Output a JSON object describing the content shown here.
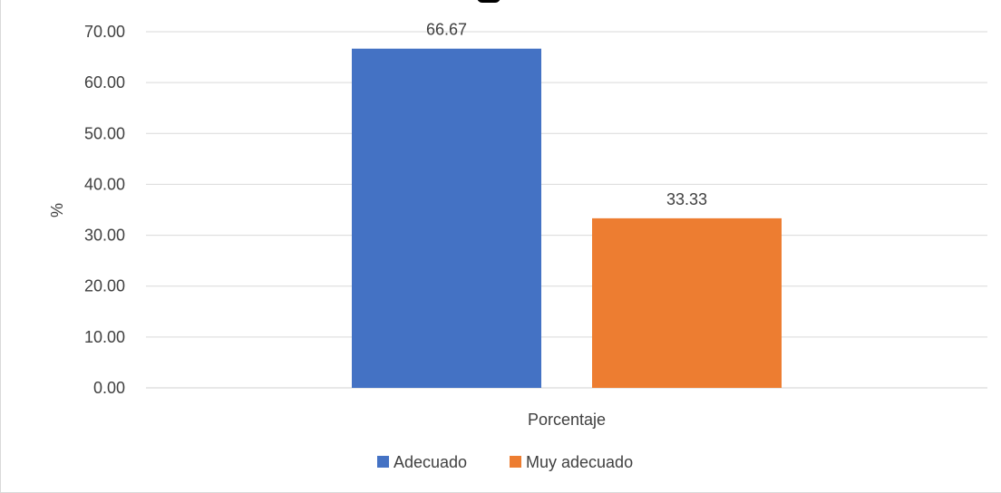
{
  "chart_data": {
    "type": "bar",
    "categories": [
      "Porcentaje"
    ],
    "series": [
      {
        "name": "Adecuado",
        "values": [
          66.67
        ],
        "color": "#4472C4"
      },
      {
        "name": "Muy adecuado",
        "values": [
          33.33
        ],
        "color": "#ED7D31"
      }
    ],
    "data_labels": [
      "66.67",
      "33.33"
    ],
    "xlabel": "",
    "ylabel": "%",
    "ylim": [
      0,
      70
    ],
    "ytick_labels": [
      "0.00",
      "10.00",
      "20.00",
      "30.00",
      "40.00",
      "50.00",
      "60.00",
      "70.00"
    ],
    "grid": true,
    "legend_position": "bottom"
  }
}
